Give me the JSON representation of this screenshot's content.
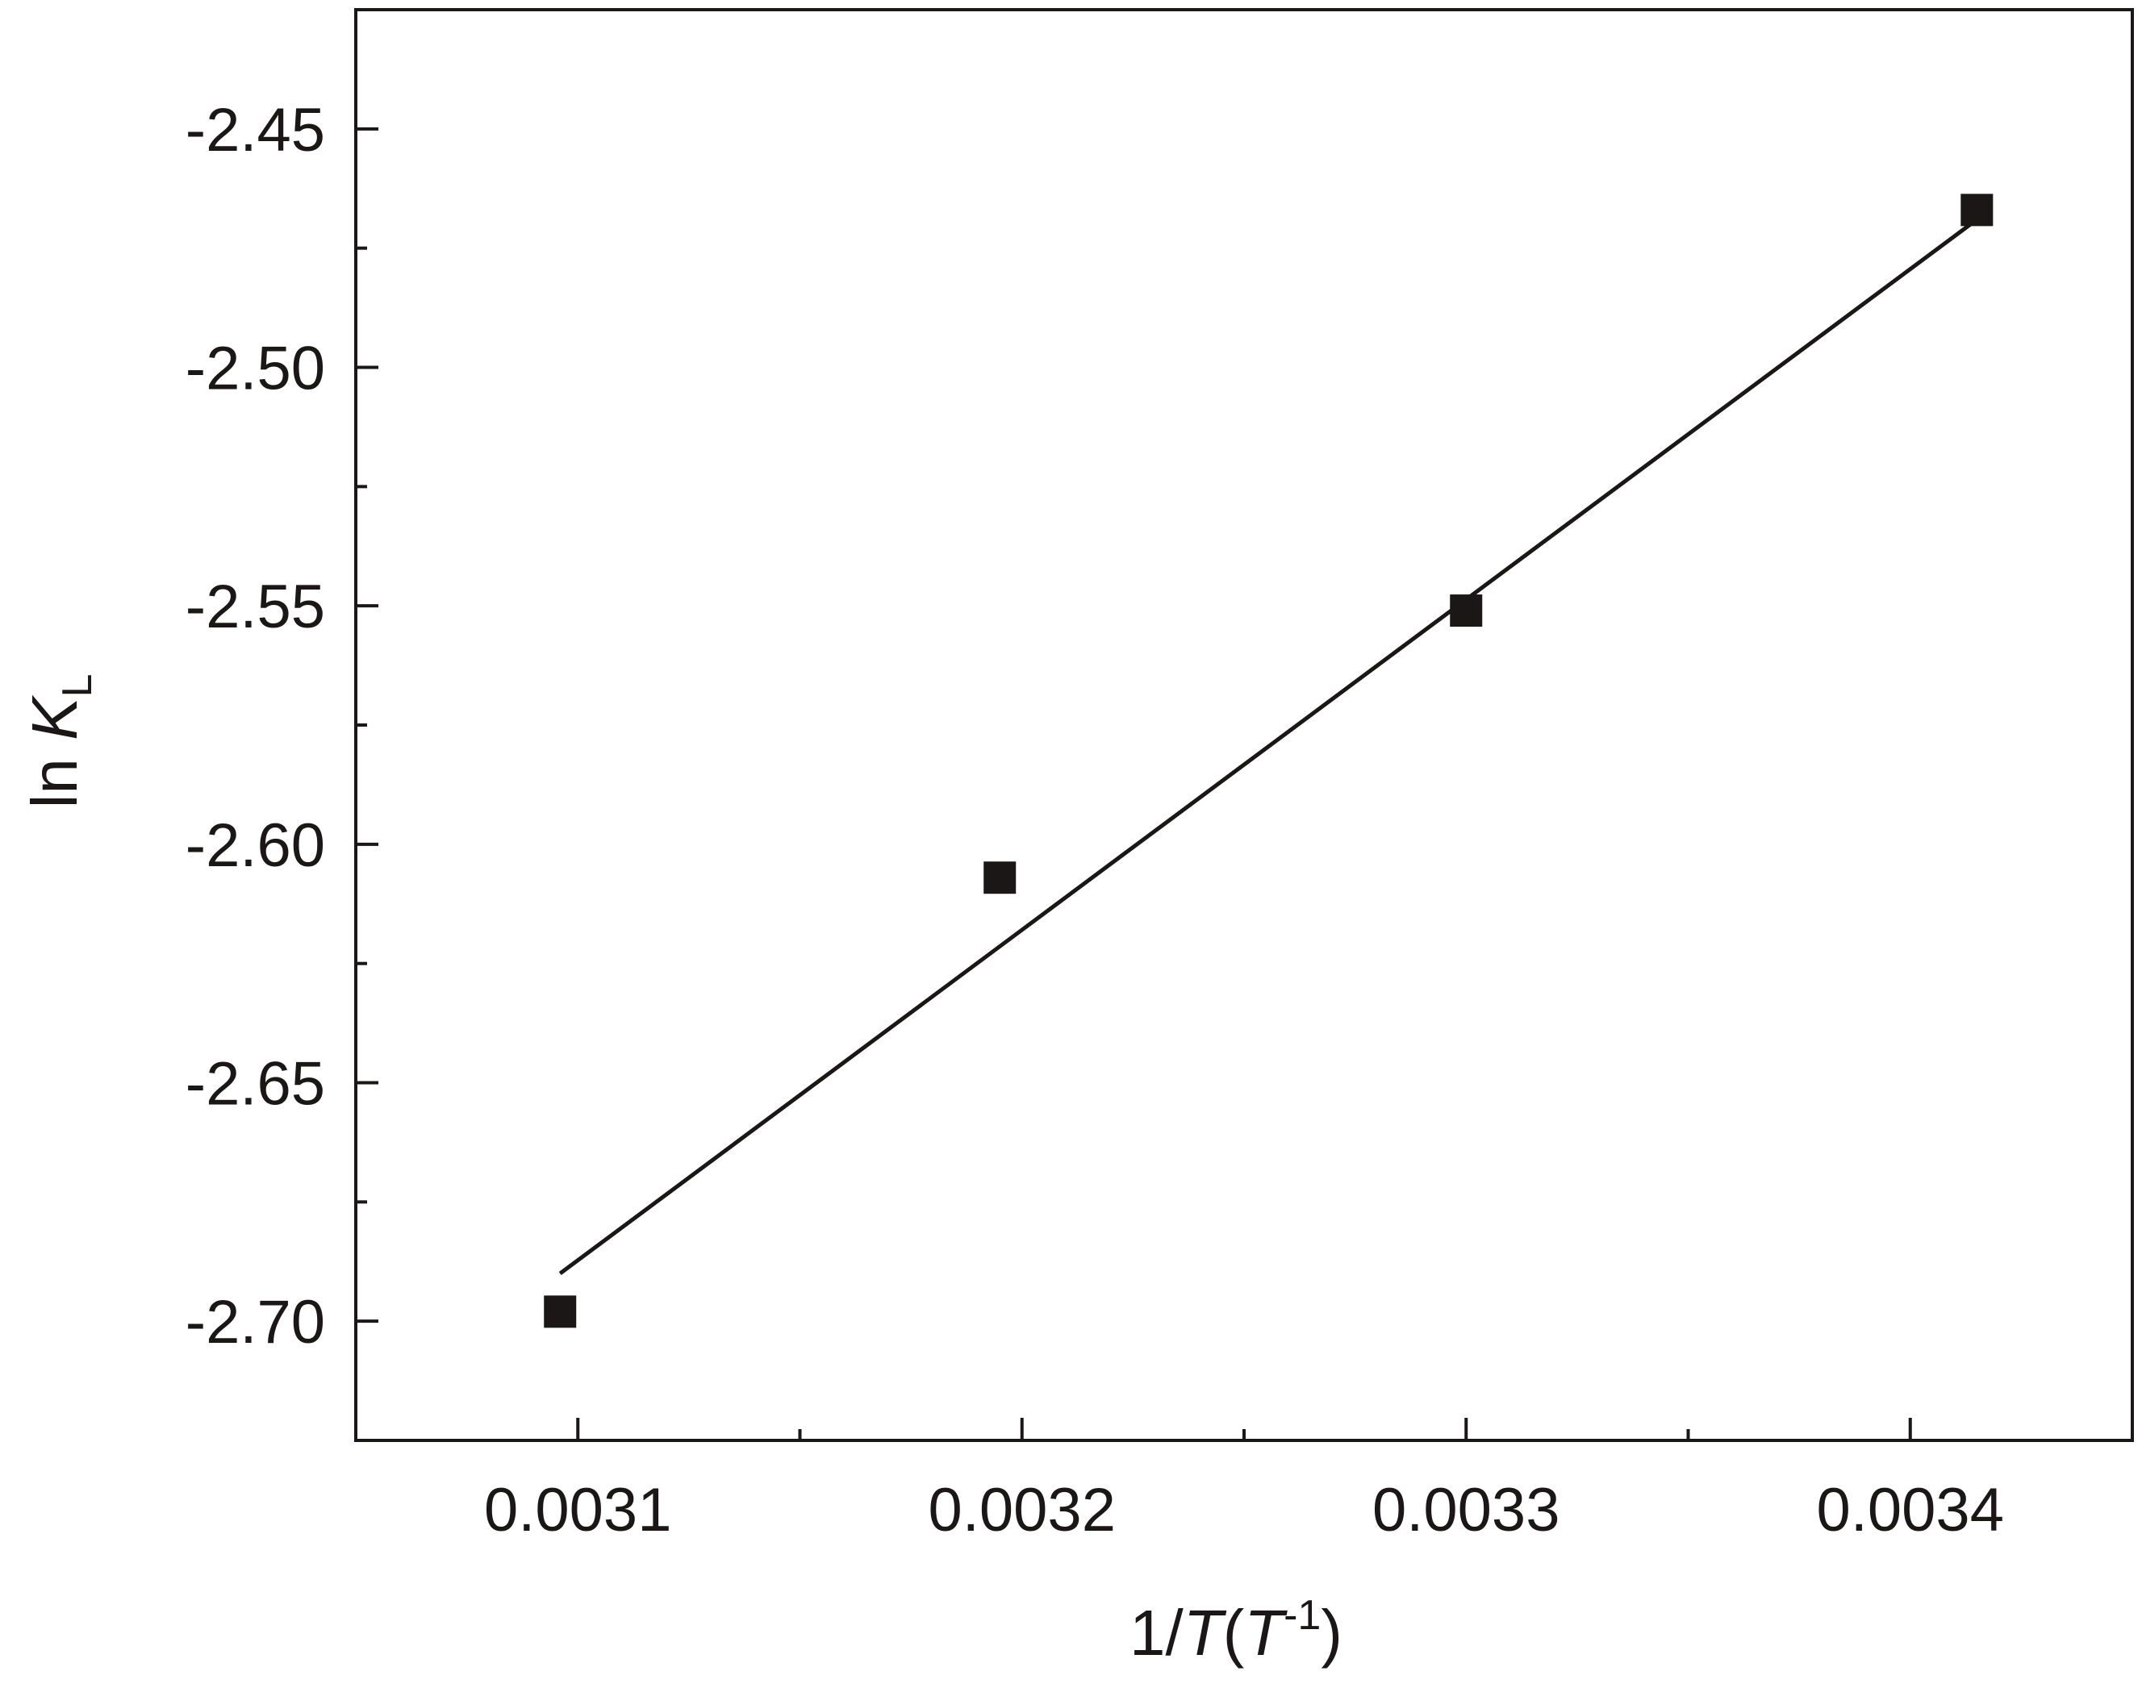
{
  "chart_data": {
    "type": "scatter",
    "title": "",
    "xlabel": {
      "prefix": "1/",
      "italic": "T",
      "open": "(",
      "italic2": "T",
      "sup": "-1",
      "close": ")"
    },
    "ylabel": {
      "prefix": "ln ",
      "italic": "K",
      "sub": "L"
    },
    "xlim": [
      0.00305,
      0.00345
    ],
    "ylim": [
      -2.725,
      -2.425
    ],
    "x_ticks": [
      0.0031,
      0.0032,
      0.0033,
      0.0034
    ],
    "x_tick_labels": [
      "0.0031",
      "0.0032",
      "0.0033",
      "0.0034"
    ],
    "x_minor_ticks": [
      0.00315,
      0.00325,
      0.00335
    ],
    "y_ticks": [
      -2.45,
      -2.5,
      -2.55,
      -2.6,
      -2.65,
      -2.7
    ],
    "y_tick_labels": [
      "-2.45",
      "-2.50",
      "-2.55",
      "-2.60",
      "-2.65",
      "-2.70"
    ],
    "y_minor_ticks": [
      -2.475,
      -2.525,
      -2.575,
      -2.625,
      -2.675
    ],
    "grid": false,
    "legend": "none",
    "series": [
      {
        "kind": "points",
        "marker": "square",
        "color": "#1a1716",
        "x": [
          0.003096,
          0.003195,
          0.0033,
          0.003415
        ],
        "y": [
          -2.698,
          -2.607,
          -2.551,
          -2.467
        ]
      },
      {
        "kind": "fit-line",
        "color": "#1a1716",
        "x": [
          0.003096,
          0.003415
        ],
        "y": [
          -2.69,
          -2.469
        ]
      }
    ]
  }
}
